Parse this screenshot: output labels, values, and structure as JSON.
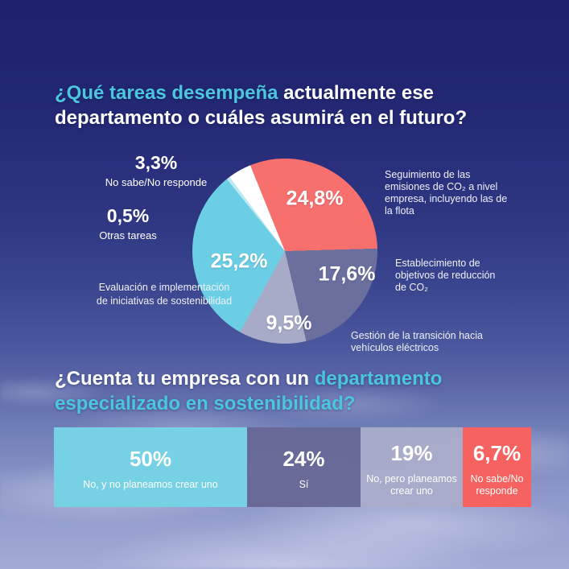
{
  "colors": {
    "background_top": "#1e226e",
    "background_bottom": "#a2aad6",
    "accent_cyan": "#4cc6e0",
    "pie_red": "#f8706d",
    "pie_slate": "#6b6f9d",
    "pie_lavender": "#a8abc8",
    "pie_cyan": "#6bcee4",
    "pie_light_cyan": "#bfe9f2",
    "pie_white": "#ffffff",
    "bar_cyan": "#77d1e4",
    "bar_slate": "#676896",
    "bar_lavender": "#a9abc9",
    "bar_coral": "#f5625f"
  },
  "title1": {
    "highlight": "¿Qué tareas desempeña",
    "rest": " actualmente ese\ndepartamento o cuáles asumirá en el futuro?"
  },
  "pie": {
    "slice_pcts": [
      "24,8%",
      "17,6%",
      "9,5%",
      "25,2%"
    ],
    "callouts": [
      {
        "pct": "3,3%",
        "label": "No sabe/No responde"
      },
      {
        "pct": "0,5%",
        "label": "Otras tareas"
      }
    ],
    "side_labels": {
      "seguimiento": "Seguimiento de las\nemisiones de CO₂ a nivel\nempresa, incluyendo las de\nla flota",
      "establecimiento": "Establecimiento de\nobjetivos de reducción\nde CO₂",
      "gestion": "Gestión de la transición hacia\nvehículos eléctricos",
      "evaluacion": "Evaluación e implementación\nde iniciativas de sostenibilidad"
    }
  },
  "title2": {
    "part1": "¿Cuenta tu empresa con un",
    "part2": " departamento\nespecializado en sostenibilidad?"
  },
  "bar": {
    "segments": [
      {
        "pct": "50%",
        "label": "No, y no planeamos crear uno"
      },
      {
        "pct": "24%",
        "label": "Sí"
      },
      {
        "pct": "19%",
        "label": "No, pero planeamos\ncrear uno"
      },
      {
        "pct": "6,7%",
        "label": "No sabe/No\nresponde"
      }
    ]
  },
  "chart_data": [
    {
      "type": "pie",
      "title": "¿Qué tareas desempeña actualmente ese departamento o cuáles asumirá en el futuro?",
      "slices": [
        {
          "label": "Seguimiento de las emisiones de CO₂ a nivel empresa, incluyendo las de la flota",
          "value": 24.8,
          "color": "#f8706d"
        },
        {
          "label": "Establecimiento de objetivos de reducción de CO₂",
          "value": 17.6,
          "color": "#6b6f9d"
        },
        {
          "label": "Gestión de la transición hacia vehículos eléctricos",
          "value": 9.5,
          "color": "#a8abc8"
        },
        {
          "label": "Evaluación e implementación de iniciativas de sostenibilidad",
          "value": 25.2,
          "color": "#6bcee4"
        },
        {
          "label": "Otras tareas",
          "value": 0.5,
          "color": "#bfe9f2"
        },
        {
          "label": "No sabe/No responde",
          "value": 3.3,
          "color": "#ffffff"
        }
      ],
      "legend_position": "around",
      "start_angle_deg": -22
    },
    {
      "type": "bar",
      "title": "¿Cuenta tu empresa con un departamento especializado en sostenibilidad?",
      "orientation": "horizontal-segments",
      "categories": [
        "No, y no planeamos crear uno",
        "Sí",
        "No, pero planeamos crear uno",
        "No sabe/No responde"
      ],
      "values": [
        50,
        24,
        19,
        6.7
      ],
      "colors": [
        "#77d1e4",
        "#676896",
        "#a9abc9",
        "#f5625f"
      ]
    }
  ]
}
